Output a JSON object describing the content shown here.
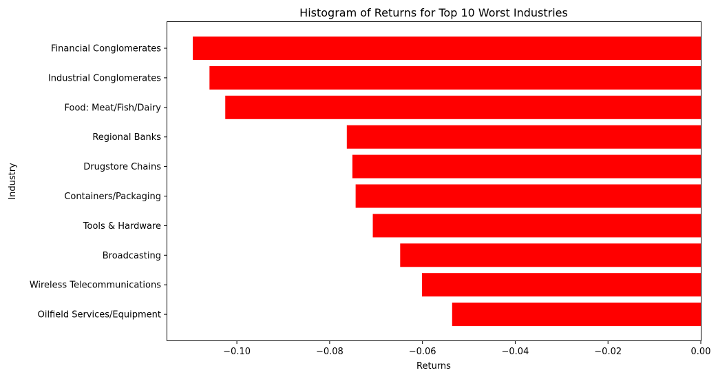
{
  "chart_data": {
    "type": "bar",
    "orientation": "horizontal",
    "title": "Histogram of Returns for Top 10 Worst Industries",
    "xlabel": "Returns",
    "ylabel": "Industry",
    "xlim": [
      -0.115,
      0.0
    ],
    "xticks": [
      -0.1,
      -0.08,
      -0.06,
      -0.04,
      -0.02,
      0.0
    ],
    "xtick_labels": [
      "−0.10",
      "−0.08",
      "−0.06",
      "−0.04",
      "−0.02",
      "0.00"
    ],
    "categories": [
      "Financial Conglomerates",
      "Industrial Conglomerates",
      "Food: Meat/Fish/Dairy",
      "Regional Banks",
      "Drugstore Chains",
      "Containers/Packaging",
      "Tools & Hardware",
      "Broadcasting",
      "Wireless Telecommunications",
      "Oilfield Services/Equipment"
    ],
    "values": [
      -0.1095,
      -0.1059,
      -0.1025,
      -0.0763,
      -0.0751,
      -0.0744,
      -0.0707,
      -0.0648,
      -0.0601,
      -0.0536
    ],
    "bar_color": "#ff0000",
    "grid": false,
    "legend": "none"
  }
}
